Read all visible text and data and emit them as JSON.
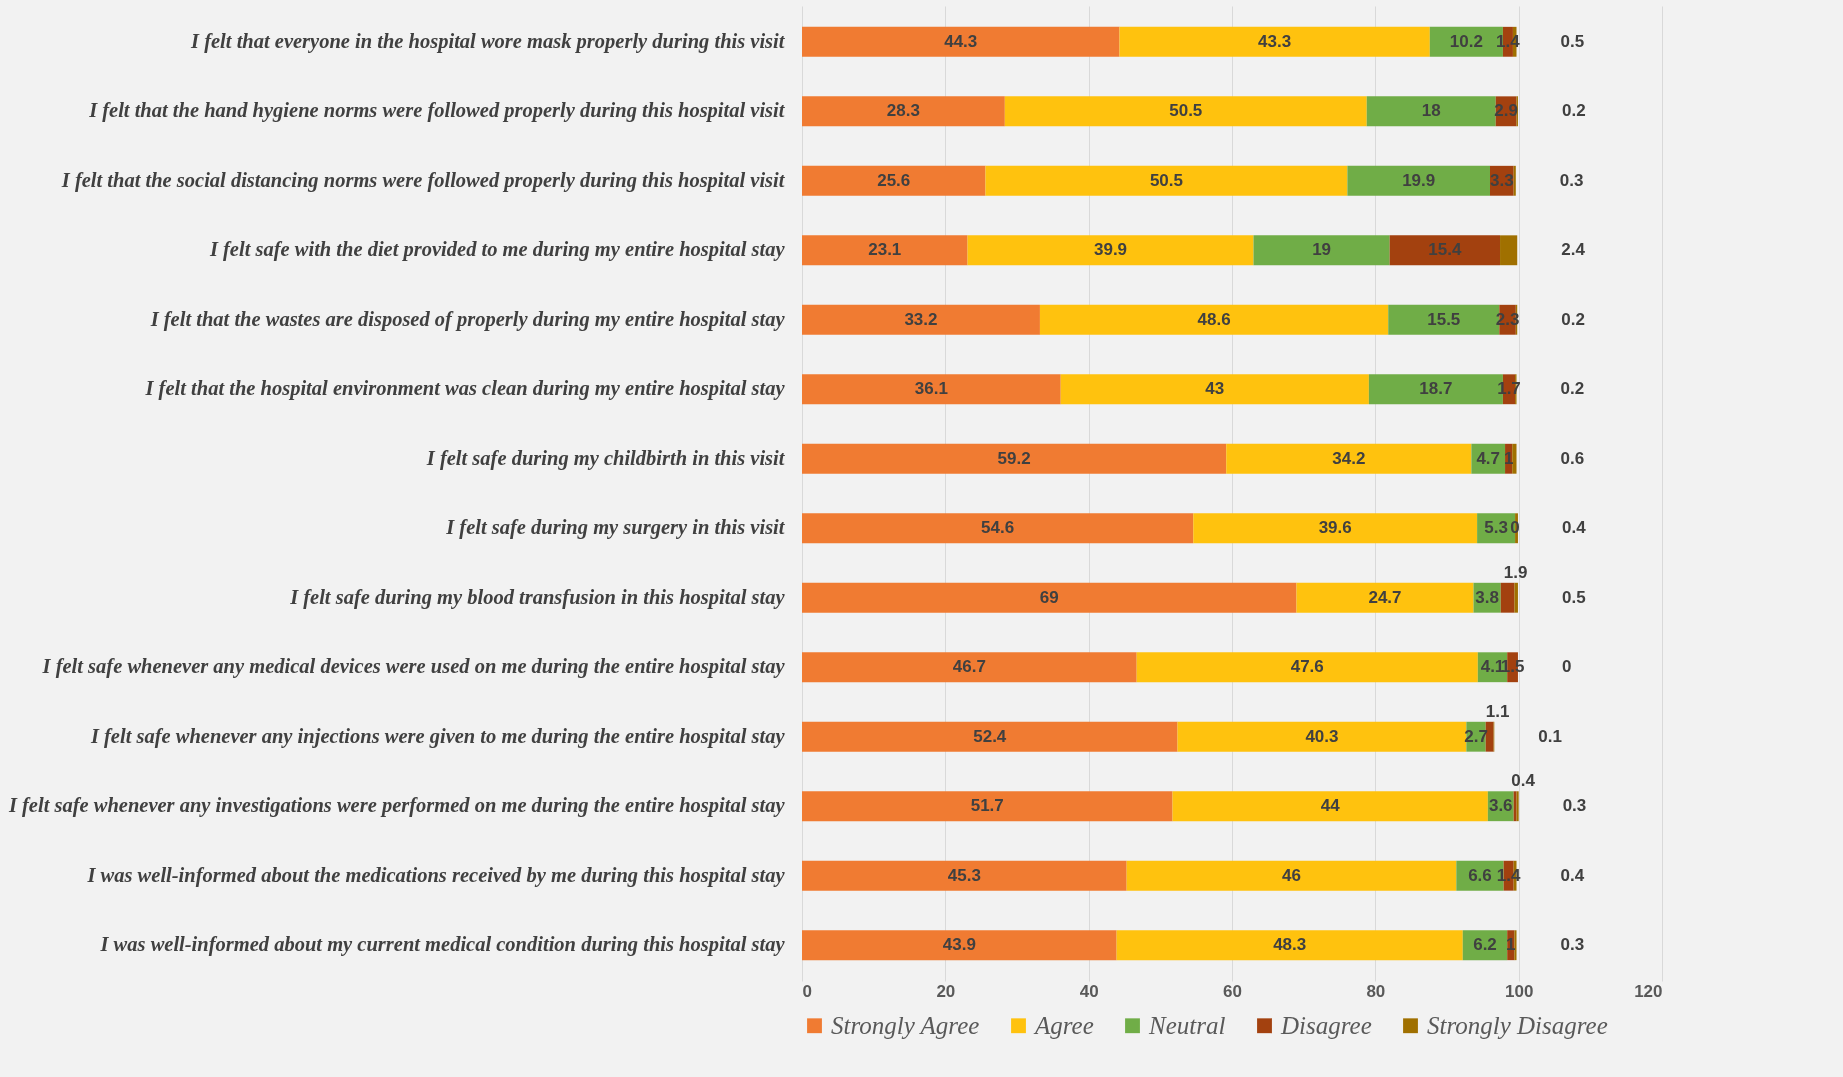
{
  "chart_data": {
    "type": "bar",
    "orientation": "horizontal",
    "stacked": true,
    "data_labels": true,
    "grid": "x",
    "legend": "bottom",
    "categories": [
      "I felt that everyone in the hospital wore mask properly during this visit",
      "I felt that the hand hygiene norms were followed properly during this hospital visit",
      "I felt that the social distancing norms were followed properly during this hospital visit",
      "I felt safe with the diet provided to me during my entire hospital stay",
      "I felt that the wastes are disposed of properly during my entire hospital stay",
      "I felt that the hospital environment was clean during my entire hospital stay",
      "I felt safe during my childbirth in this visit",
      "I felt safe during my surgery in this visit",
      "I felt safe during my blood transfusion in this hospital stay",
      "I felt safe whenever any medical devices were used on me during the entire hospital stay",
      "I felt safe whenever any injections were given to me during the entire hospital stay",
      "I felt safe whenever any investigations were performed on me during the entire hospital stay",
      "I was well-informed about the medications received by me during this hospital stay",
      "I was well-informed about my current medical condition during this hospital stay"
    ],
    "series": [
      {
        "name": "Strongly Agree",
        "color": "#f07b32",
        "values": [
          44.3,
          28.3,
          25.6,
          23.1,
          33.2,
          36.1,
          59.2,
          54.6,
          69,
          46.7,
          52.4,
          51.7,
          45.3,
          43.9
        ]
      },
      {
        "name": "Agree",
        "color": "#ffc20e",
        "values": [
          43.3,
          50.5,
          50.5,
          39.9,
          48.6,
          43,
          34.2,
          39.6,
          24.7,
          47.6,
          40.3,
          44,
          46,
          48.3
        ]
      },
      {
        "name": "Neutral",
        "color": "#70ad47",
        "values": [
          10.2,
          18,
          19.9,
          19,
          15.5,
          18.7,
          4.7,
          5.3,
          3.8,
          4.1,
          2.7,
          3.6,
          6.6,
          6.2
        ]
      },
      {
        "name": "Disagree",
        "color": "#a3410f",
        "values": [
          1.4,
          2.9,
          3.3,
          15.4,
          2.3,
          1.7,
          1,
          0,
          1.9,
          1.5,
          1.1,
          0.4,
          1.4,
          1
        ]
      },
      {
        "name": "Strongly Disagree",
        "color": "#a07000",
        "values": [
          0.5,
          0.2,
          0.3,
          2.4,
          0.2,
          0.2,
          0.6,
          0.4,
          0.5,
          0,
          0.1,
          0.3,
          0.4,
          0.3
        ]
      }
    ],
    "xlim": [
      0,
      120
    ],
    "xticks": [
      0,
      20,
      40,
      60,
      80,
      100,
      120
    ]
  }
}
